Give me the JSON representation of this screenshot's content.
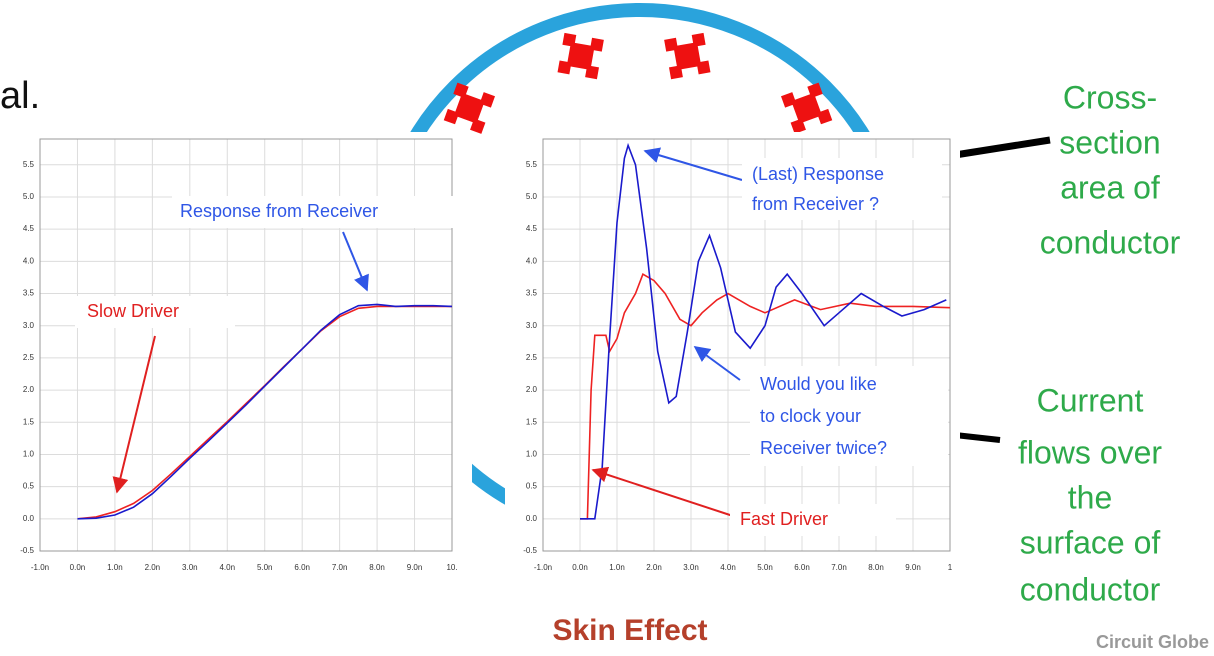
{
  "heading_fragment": "al.",
  "chart_data": [
    {
      "type": "line",
      "xlim": [
        -1,
        10
      ],
      "ylim": [
        -0.5,
        5.9
      ],
      "xticks": [
        {
          "value": -1,
          "label": "-1.0n"
        },
        {
          "value": 0,
          "label": "0.0n"
        },
        {
          "value": 1,
          "label": "1.0n"
        },
        {
          "value": 2,
          "label": "2.0n"
        },
        {
          "value": 3,
          "label": "3.0n"
        },
        {
          "value": 4,
          "label": "4.0n"
        },
        {
          "value": 5,
          "label": "5.0n"
        },
        {
          "value": 6,
          "label": "6.0n"
        },
        {
          "value": 7,
          "label": "7.0n"
        },
        {
          "value": 8,
          "label": "8.0n"
        },
        {
          "value": 9,
          "label": "9.0n"
        },
        {
          "value": 10,
          "label": "10."
        }
      ],
      "yticks": [
        -0.5,
        {
          "value": 0,
          "label": "0.0"
        },
        0.5,
        {
          "value": 1,
          "label": "1.0"
        },
        1.5,
        {
          "value": 2,
          "label": "2.0"
        },
        2.5,
        {
          "value": 3,
          "label": "3.0"
        },
        3.5,
        {
          "value": 4,
          "label": "4.0"
        },
        4.5,
        {
          "value": 5,
          "label": "5.0"
        },
        5.5
      ],
      "grid": true,
      "series": [
        {
          "color": "#ee2222",
          "x": [
            0,
            0.5,
            1,
            1.5,
            2,
            2.5,
            3,
            3.5,
            4,
            4.5,
            5,
            5.5,
            6,
            6.5,
            7,
            7.5,
            8,
            8.5,
            9,
            9.5,
            10
          ],
          "values": [
            0,
            0.03,
            0.11,
            0.24,
            0.44,
            0.7,
            0.97,
            1.24,
            1.51,
            1.79,
            2.07,
            2.36,
            2.64,
            2.92,
            3.14,
            3.27,
            3.3,
            3.3,
            3.3,
            3.3,
            3.3
          ]
        },
        {
          "color": "#1a1acc",
          "x": [
            0,
            0.5,
            1,
            1.5,
            2,
            2.5,
            3,
            3.5,
            4,
            4.5,
            5,
            5.5,
            6,
            6.5,
            7,
            7.5,
            8,
            8.5,
            9,
            9.5,
            10
          ],
          "values": [
            0,
            0.01,
            0.06,
            0.18,
            0.39,
            0.66,
            0.94,
            1.21,
            1.49,
            1.77,
            2.06,
            2.35,
            2.64,
            2.93,
            3.17,
            3.31,
            3.33,
            3.3,
            3.31,
            3.31,
            3.3
          ]
        }
      ],
      "annotations": [
        {
          "lines": [
            "Response from Receiver"
          ],
          "color": "#2f56e6"
        },
        {
          "lines": [
            "Slow Driver"
          ],
          "color": "#e02020"
        }
      ]
    },
    {
      "type": "line",
      "xlim": [
        -1,
        10
      ],
      "ylim": [
        -0.5,
        5.9
      ],
      "xticks": [
        {
          "value": -1,
          "label": "-1.0n"
        },
        {
          "value": 0,
          "label": "0.0n"
        },
        {
          "value": 1,
          "label": "1.0n"
        },
        {
          "value": 2,
          "label": "2.0n"
        },
        {
          "value": 3,
          "label": "3.0n"
        },
        {
          "value": 4,
          "label": "4.0n"
        },
        {
          "value": 5,
          "label": "5.0n"
        },
        {
          "value": 6,
          "label": "6.0n"
        },
        {
          "value": 7,
          "label": "7.0n"
        },
        {
          "value": 8,
          "label": "8.0n"
        },
        {
          "value": 9,
          "label": "9.0n"
        },
        {
          "value": 10,
          "label": "1"
        }
      ],
      "yticks": [
        -0.5,
        {
          "value": 0,
          "label": "0.0"
        },
        0.5,
        {
          "value": 1,
          "label": "1.0"
        },
        1.5,
        {
          "value": 2,
          "label": "2.0"
        },
        2.5,
        {
          "value": 3,
          "label": "3.0"
        },
        3.5,
        {
          "value": 4,
          "label": "4.0"
        },
        4.5,
        {
          "value": 5,
          "label": "5.0"
        },
        5.5
      ],
      "grid": true,
      "series": [
        {
          "color": "#ee2222",
          "x": [
            0,
            0.2,
            0.3,
            0.4,
            0.7,
            0.8,
            1.0,
            1.2,
            1.5,
            1.7,
            2.0,
            2.3,
            2.7,
            3.0,
            3.3,
            3.7,
            4.0,
            4.6,
            5.0,
            5.8,
            6.5,
            7.3,
            8.0,
            9.0,
            10.0
          ],
          "values": [
            0,
            0,
            2.0,
            2.85,
            2.85,
            2.6,
            2.8,
            3.2,
            3.5,
            3.8,
            3.7,
            3.5,
            3.1,
            3.0,
            3.2,
            3.4,
            3.5,
            3.3,
            3.2,
            3.4,
            3.25,
            3.35,
            3.3,
            3.3,
            3.28
          ]
        },
        {
          "color": "#1a1acc",
          "x": [
            0,
            0.4,
            0.6,
            0.8,
            1.0,
            1.2,
            1.3,
            1.5,
            1.8,
            2.1,
            2.4,
            2.6,
            2.9,
            3.2,
            3.5,
            3.8,
            4.2,
            4.6,
            5.0,
            5.3,
            5.6,
            6.0,
            6.6,
            7.0,
            7.6,
            8.2,
            8.7,
            9.3,
            9.9
          ],
          "values": [
            0,
            0,
            0.8,
            2.8,
            4.6,
            5.6,
            5.8,
            5.5,
            4.2,
            2.6,
            1.8,
            1.9,
            2.9,
            4.0,
            4.4,
            3.9,
            2.9,
            2.65,
            3.0,
            3.6,
            3.8,
            3.5,
            3.0,
            3.2,
            3.5,
            3.3,
            3.15,
            3.25,
            3.4
          ]
        }
      ],
      "annotations": [
        {
          "lines": [
            "(Last) Response",
            "from Receiver ?"
          ],
          "color": "#2f56e6"
        },
        {
          "lines": [
            "Would you like",
            "to clock your",
            "Receiver twice?"
          ],
          "color": "#2f56e6"
        },
        {
          "lines": [
            "Fast Driver"
          ],
          "color": "#e02020"
        }
      ]
    }
  ],
  "diagram": {
    "title": "Skin Effect",
    "labels": [
      {
        "lines": [
          "Cross-",
          "section",
          "area of",
          "conductor"
        ]
      },
      {
        "lines": [
          "Current",
          "flows over",
          "the",
          "surface of",
          "conductor"
        ]
      }
    ],
    "credit": "Circuit Globe"
  }
}
